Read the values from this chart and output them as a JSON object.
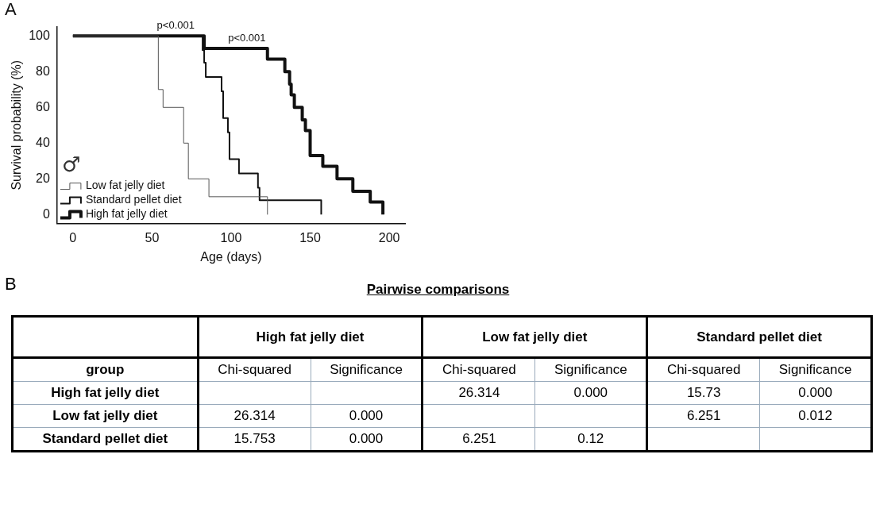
{
  "chart_data": [
    {
      "type": "step",
      "xlabel": "Age (days)",
      "ylabel": "Survival probability (%)",
      "legend_title": "♂",
      "xlim": [
        -10,
        210
      ],
      "xticks": [
        0,
        50,
        100,
        150,
        200
      ],
      "ylim": [
        -5,
        105
      ],
      "yticks": [
        0,
        20,
        40,
        60,
        80,
        100
      ],
      "grid": false,
      "legend": "bottom left",
      "marker": "none",
      "line_style": "solid",
      "series": [
        {
          "name": "Low fat jelly diet",
          "color": "#555555",
          "x": [
            0,
            54,
            57,
            70,
            73,
            86,
            123
          ],
          "values": [
            100,
            70,
            60,
            40,
            20,
            10,
            0
          ]
        },
        {
          "name": "Standard pellet diet",
          "color": "#111111",
          "x": [
            0,
            82,
            83,
            84,
            94,
            95,
            98,
            99,
            105,
            117,
            118,
            157
          ],
          "values": [
            100,
            92,
            85,
            77,
            69,
            54,
            46,
            31,
            23,
            15,
            8,
            0
          ]
        },
        {
          "name": "High fat jelly diet",
          "color": "#111111",
          "x": [
            0,
            83,
            123,
            134,
            137,
            138,
            140,
            145,
            147,
            150,
            158,
            167,
            177,
            188,
            196
          ],
          "values": [
            100,
            93,
            87,
            80,
            73,
            67,
            60,
            53,
            47,
            33,
            27,
            20,
            13,
            7,
            0
          ]
        }
      ],
      "annotations": [
        "A",
        {
          "text": "p<0.001",
          "x": 65,
          "y": 100
        },
        {
          "text": "p<0.001",
          "x": 110,
          "y": 93
        }
      ]
    },
    {
      "type": "other",
      "title": "Pairwise comparisons",
      "annotations": [
        "B",
        "High fat jelly diet",
        "Low fat jelly diet",
        "Standard pellet diet",
        "group",
        "Chi-squared",
        "Significance",
        "Chi-squared",
        "Significance",
        "Chi-squared",
        "Significance",
        "High fat jelly diet",
        "26.314",
        "0.000",
        "15.73",
        "0.000",
        "Low fat jelly diet",
        "26.314",
        "0.000",
        "6.251",
        "0.012",
        "Standard pellet diet",
        "15.753",
        "0.000",
        "6.251",
        "0.12"
      ]
    }
  ]
}
